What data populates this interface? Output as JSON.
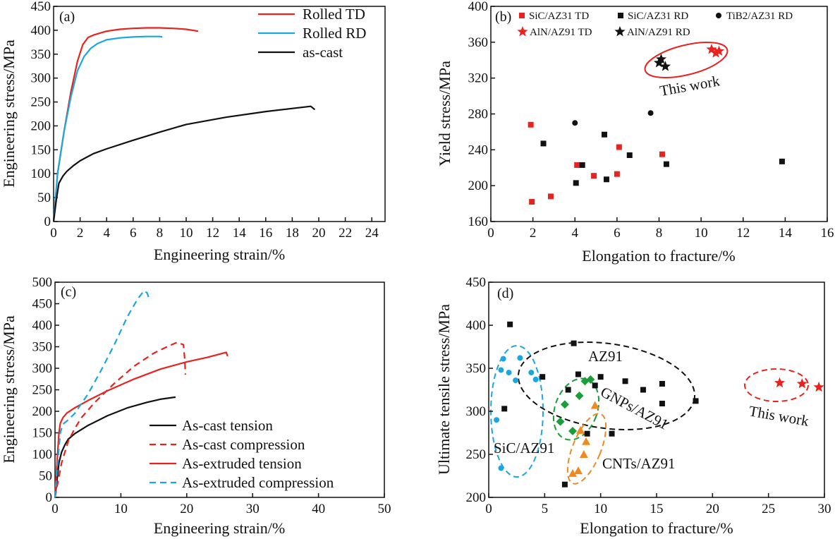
{
  "chart_data": [
    {
      "panel": "(a)",
      "type": "line",
      "xlabel": "Engineering strain/%",
      "ylabel": "Engineering stress/MPa",
      "xlim": [
        0,
        25
      ],
      "ylim": [
        0,
        450
      ],
      "xticks": [
        0,
        2,
        4,
        6,
        8,
        10,
        12,
        14,
        16,
        18,
        20,
        22,
        24
      ],
      "yticks": [
        0,
        50,
        100,
        150,
        200,
        250,
        300,
        350,
        400,
        450
      ],
      "legend_position": "top-right",
      "series": [
        {
          "name": "Rolled TD",
          "color": "#e8231f",
          "dash": "",
          "x": [
            0,
            0.3,
            0.8,
            1.3,
            1.8,
            2.2,
            2.6,
            3.0,
            4,
            5,
            6,
            7,
            8,
            9,
            10,
            10.9
          ],
          "y": [
            0,
            100,
            190,
            270,
            335,
            370,
            385,
            390,
            398,
            402,
            404,
            405,
            405,
            404,
            402,
            398
          ]
        },
        {
          "name": "Rolled RD",
          "color": "#1aa7e0",
          "dash": "",
          "x": [
            0,
            0.3,
            0.8,
            1.3,
            1.8,
            2.3,
            2.8,
            3.3,
            4,
            5,
            6,
            7,
            8,
            8.2
          ],
          "y": [
            0,
            100,
            190,
            260,
            315,
            345,
            362,
            372,
            380,
            384,
            386,
            387,
            387,
            386
          ]
        },
        {
          "name": "as-cast",
          "color": "#111111",
          "dash": "",
          "x": [
            0,
            0.2,
            0.4,
            0.7,
            1,
            1.5,
            2,
            3,
            4,
            6,
            8,
            10,
            13,
            16,
            19.4,
            19.7
          ],
          "y": [
            0,
            45,
            80,
            95,
            105,
            117,
            127,
            142,
            152,
            170,
            187,
            203,
            218,
            230,
            241,
            234
          ]
        }
      ]
    },
    {
      "panel": "(b)",
      "type": "scatter",
      "xlabel": "Elongation to fracture/%",
      "ylabel": "Yield stress/MPa",
      "xlim": [
        0,
        16
      ],
      "ylim": [
        160,
        400
      ],
      "xticks": [
        0,
        2,
        4,
        6,
        8,
        10,
        12,
        14,
        16
      ],
      "yticks": [
        160,
        200,
        240,
        280,
        320,
        360,
        400
      ],
      "legend_position": "top",
      "annotation": "This work",
      "series": [
        {
          "name": "SiC/AZ31 TD",
          "marker": "square",
          "color": "#e8231f",
          "x": [
            1.9,
            1.95,
            2.85,
            4.1,
            4.9,
            6.0,
            6.1,
            8.15
          ],
          "y": [
            268,
            182,
            188,
            223,
            211,
            213,
            243,
            235
          ]
        },
        {
          "name": "SiC/AZ31 RD",
          "marker": "square",
          "color": "#111111",
          "x": [
            2.5,
            4.05,
            4.35,
            5.4,
            5.5,
            6.6,
            8.35,
            13.85
          ],
          "y": [
            247,
            203,
            223,
            257,
            207,
            234,
            224,
            227
          ]
        },
        {
          "name": "TiB2/AZ31 RD",
          "marker": "circle",
          "color": "#111111",
          "x": [
            4.0,
            7.6
          ],
          "y": [
            270,
            281
          ]
        },
        {
          "name": "AlN/AZ91 TD",
          "marker": "star",
          "color": "#e8231f",
          "x": [
            10.5,
            10.7,
            10.85
          ],
          "y": [
            352,
            348,
            350
          ]
        },
        {
          "name": "AlN/AZ91 RD",
          "marker": "star",
          "color": "#111111",
          "x": [
            8.0,
            8.1,
            8.3
          ],
          "y": [
            337,
            341,
            333
          ]
        }
      ]
    },
    {
      "panel": "(c)",
      "type": "line",
      "xlabel": "Engineering strain/%",
      "ylabel": "Engineering stress/MPa",
      "xlim": [
        0,
        50
      ],
      "ylim": [
        0,
        500
      ],
      "xticks": [
        0,
        10,
        20,
        30,
        40,
        50
      ],
      "yticks": [
        0,
        50,
        100,
        150,
        200,
        250,
        300,
        350,
        400,
        450,
        500
      ],
      "legend_position": "bottom-right",
      "series": [
        {
          "name": "As-cast tension",
          "color": "#111111",
          "dash": "",
          "x": [
            0,
            0.3,
            0.6,
            1,
            1.5,
            2,
            3,
            5,
            8,
            11,
            14,
            16,
            18.3
          ],
          "y": [
            0,
            40,
            80,
            105,
            122,
            135,
            148,
            167,
            190,
            208,
            221,
            228,
            233
          ]
        },
        {
          "name": "As-cast compression",
          "color": "#e8231f",
          "dash": "9,6",
          "x": [
            0,
            0.5,
            1,
            2,
            3,
            4,
            6,
            9,
            12,
            15,
            17,
            18.5,
            19.5,
            19.7,
            19.8
          ],
          "y": [
            0,
            40,
            80,
            130,
            160,
            185,
            220,
            265,
            305,
            335,
            350,
            360,
            355,
            320,
            285
          ]
        },
        {
          "name": "As-extruded tension",
          "color": "#e8231f",
          "dash": "",
          "x": [
            0,
            0.3,
            0.6,
            0.8,
            1.2,
            1.8,
            3,
            5,
            8,
            12,
            16,
            20,
            23,
            25,
            26,
            26.2
          ],
          "y": [
            0,
            80,
            150,
            172,
            185,
            196,
            208,
            225,
            248,
            275,
            298,
            315,
            325,
            333,
            337,
            328
          ]
        },
        {
          "name": "As-extruded compression",
          "color": "#1aa7e0",
          "dash": "9,6",
          "x": [
            0,
            0.4,
            0.8,
            1.2,
            2,
            3,
            5,
            7,
            9,
            11,
            12.5,
            13.5,
            14,
            14.2
          ],
          "y": [
            0,
            80,
            150,
            170,
            180,
            195,
            240,
            295,
            355,
            420,
            460,
            480,
            475,
            465
          ]
        }
      ]
    },
    {
      "panel": "(d)",
      "type": "scatter",
      "xlabel": "Elongation to fracture/%",
      "ylabel": "Ultimate tensile stress/MPa",
      "xlim": [
        0,
        30
      ],
      "ylim": [
        200,
        450
      ],
      "xticks": [
        0,
        5,
        10,
        15,
        20,
        25,
        30
      ],
      "yticks": [
        200,
        250,
        300,
        350,
        400,
        450
      ],
      "groups": [
        "AZ91",
        "GNPs/AZ91",
        "SiC/AZ91",
        "CNTs/AZ91",
        "This work"
      ],
      "series": [
        {
          "name": "AZ91",
          "marker": "square",
          "color": "#111111",
          "x": [
            1.9,
            1.4,
            4.8,
            6.8,
            7.1,
            7.6,
            8.0,
            8.8,
            9.5,
            10.0,
            11.0,
            12.2,
            13.8,
            15.5,
            15.5,
            18.5
          ],
          "y": [
            401,
            303,
            340,
            215,
            325,
            379,
            343,
            274,
            330,
            340,
            274,
            335,
            325,
            332,
            309,
            312
          ]
        },
        {
          "name": "GNPs/AZ91",
          "marker": "diamond",
          "color": "#1a9e3a",
          "x": [
            6.4,
            6.8,
            7.5,
            8.1,
            8.6,
            9.1
          ],
          "y": [
            288,
            308,
            277,
            318,
            335,
            337
          ]
        },
        {
          "name": "SiC/AZ91",
          "marker": "circle",
          "color": "#1aa7e0",
          "x": [
            0.7,
            1.1,
            1.3,
            1.1,
            1.8,
            2.4,
            2.8,
            3.8,
            4.2
          ],
          "y": [
            290,
            348,
            361,
            234,
            345,
            336,
            362,
            345,
            337
          ]
        },
        {
          "name": "CNTs/AZ91",
          "marker": "triangle",
          "color": "#f08a1f",
          "x": [
            7.5,
            8.0,
            8.2,
            8.5,
            8.7,
            9.5
          ],
          "y": [
            228,
            231,
            278,
            250,
            265,
            307
          ]
        },
        {
          "name": "This work",
          "marker": "star",
          "color": "#e8231f",
          "x": [
            26.0,
            28.0,
            29.5
          ],
          "y": [
            333,
            332,
            328
          ]
        }
      ]
    }
  ]
}
